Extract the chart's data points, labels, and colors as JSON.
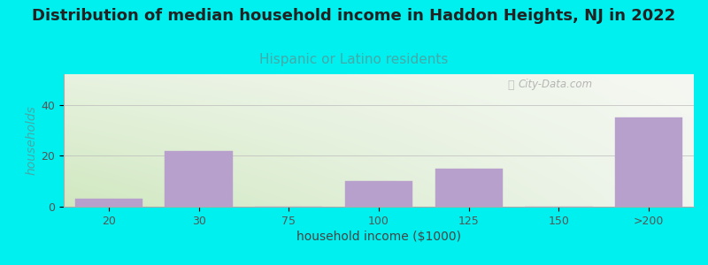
{
  "title": "Distribution of median household income in Haddon Heights, NJ in 2022",
  "subtitle": "Hispanic or Latino residents",
  "xlabel": "household income ($1000)",
  "ylabel": "households",
  "background_color": "#00EFEF",
  "chart_bg_top_left": "#ddeedd",
  "chart_bg_top_right": "#f8f8f8",
  "chart_bg_bottom": "#e8f0e0",
  "bar_color": "#b8a0cc",
  "bar_edge_color": "#b8a0cc",
  "categories": [
    "20",
    "30",
    "75",
    "100",
    "125",
    "150",
    ">200"
  ],
  "values": [
    3,
    22,
    0,
    10,
    15,
    0,
    35
  ],
  "ylim": [
    0,
    52
  ],
  "yticks": [
    0,
    20,
    40
  ],
  "watermark": "City-Data.com",
  "title_fontsize": 13,
  "subtitle_fontsize": 11,
  "subtitle_color": "#44aaaa",
  "axis_label_fontsize": 10,
  "ylabel_color": "#44aaaa",
  "tick_fontsize": 9,
  "tick_color": "#555555"
}
